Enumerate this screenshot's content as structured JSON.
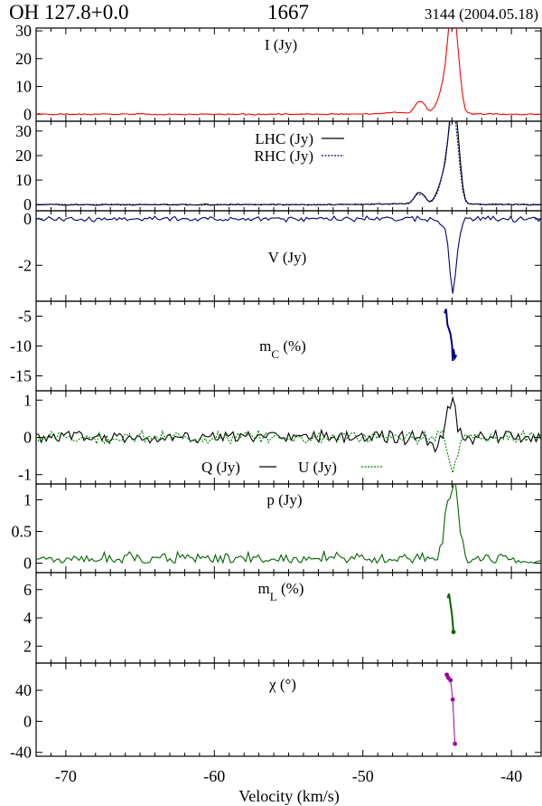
{
  "header": {
    "object": "OH 127.8+0.0",
    "frequency": "1667",
    "epoch": "3144 (2004.05.18)"
  },
  "colors": {
    "I": "#ff0000",
    "LHC": "#000000",
    "RHC": "#000080",
    "V": "#000080",
    "mC": "#000080",
    "Q": "#000000",
    "U": "#008000",
    "p": "#006400",
    "mL": "#006400",
    "chi": "#a000a0"
  },
  "chart_data": {
    "type": "line",
    "xlabel": "Velocity (km/s)",
    "xlim": [
      -72,
      -38
    ],
    "xticks": [
      -70,
      -60,
      -50,
      -40
    ],
    "panels": [
      {
        "id": "I",
        "labels": [
          "I (Jy)"
        ],
        "ylim": [
          -2.5,
          31
        ],
        "yticks": [
          0,
          10,
          20,
          30
        ],
        "ytick_labels": [
          "0",
          "10",
          "20",
          "30"
        ],
        "series": [
          {
            "color_key": "I",
            "dash": false,
            "seed": 1,
            "noise": 0.15,
            "features": [
              [
                -46,
                0,
                0.18
              ],
              [
                -47.8,
                0.3,
                0.55
              ],
              [
                -46.3,
                3.5,
                0.25
              ],
              [
                -45.9,
                2.5,
                0.2
              ],
              [
                -44.9,
                3,
                0.3
              ],
              [
                -44.4,
                12,
                0.3
              ],
              [
                -44.05,
                26,
                0.22
              ],
              [
                -43.75,
                20,
                0.22
              ],
              [
                -43.45,
                6,
                0.2
              ]
            ],
            "floor": 0.4
          }
        ]
      },
      {
        "id": "LR",
        "labels": [
          "LHC (Jy)",
          "RHC (Jy)"
        ],
        "ylim": [
          -2.5,
          34
        ],
        "yticks": [
          0,
          10,
          20,
          30
        ],
        "ytick_labels": [
          "0",
          "10",
          "20",
          "30"
        ],
        "series": [
          {
            "name": "LHC (Jy)",
            "color_key": "LHC",
            "dash": false,
            "seed": 2,
            "noise": 0.15,
            "features": [
              [
                -46.3,
                4,
                0.25
              ],
              [
                -45.9,
                2.5,
                0.2
              ],
              [
                -44.9,
                3.5,
                0.3
              ],
              [
                -44.4,
                13,
                0.3
              ],
              [
                -44.0,
                29,
                0.22
              ],
              [
                -43.7,
                21,
                0.22
              ],
              [
                -43.45,
                6,
                0.2
              ]
            ],
            "floor": 0.4
          },
          {
            "name": "RHC (Jy)",
            "color_key": "RHC",
            "dash": true,
            "seed": 3,
            "noise": 0.15,
            "features": [
              [
                -46.3,
                3.5,
                0.25
              ],
              [
                -45.9,
                2.2,
                0.2
              ],
              [
                -44.9,
                3,
                0.3
              ],
              [
                -44.4,
                12,
                0.3
              ],
              [
                -44.05,
                22,
                0.25
              ],
              [
                -43.75,
                20,
                0.22
              ],
              [
                -43.45,
                5,
                0.2
              ]
            ],
            "floor": 0.4
          }
        ]
      },
      {
        "id": "V",
        "labels": [
          "V (Jy)"
        ],
        "ylim": [
          -3.55,
          0.35
        ],
        "yticks": [
          0,
          -2
        ],
        "ytick_labels": [
          "0",
          "-2"
        ],
        "series": [
          {
            "color_key": "V",
            "dash": false,
            "seed": 4,
            "noise": 0.07,
            "features": [
              [
                -44.5,
                -0.4,
                0.3
              ],
              [
                -43.95,
                -3.1,
                0.2
              ],
              [
                -43.55,
                -0.6,
                0.2
              ]
            ],
            "floor": 0
          }
        ]
      },
      {
        "id": "mC",
        "labels": [
          "mC (%)"
        ],
        "ylim": [
          -17.5,
          -2.5
        ],
        "yticks": [
          -5,
          -10,
          -15
        ],
        "ytick_labels": [
          "-5",
          "-10",
          "-15"
        ],
        "points": {
          "color_key": "mC",
          "x": [
            -44.5,
            -44.4,
            -44.3,
            -44.2,
            -44.1,
            -44.0,
            -43.95,
            -43.9,
            -43.8,
            -43.7
          ],
          "y": [
            -4.5,
            -3.8,
            -6.5,
            -7.2,
            -8.0,
            -9.8,
            -12.5,
            -10.5,
            -12.0,
            -11.5
          ],
          "markers": false
        }
      },
      {
        "id": "QU",
        "labels": [
          "Q (Jy)",
          "U (Jy)"
        ],
        "ylim": [
          -1.25,
          1.25
        ],
        "yticks": [
          1,
          0,
          -1
        ],
        "ytick_labels": [
          "1",
          "0",
          "-1"
        ],
        "series": [
          {
            "name": "Q (Jy)",
            "color_key": "Q",
            "dash": false,
            "seed": 5,
            "noise": 0.11,
            "features": [
              [
                -44.05,
                0.95,
                0.3
              ],
              [
                -45.2,
                -0.3,
                0.25
              ]
            ],
            "floor": 0
          },
          {
            "name": "U (Jy)",
            "color_key": "U",
            "dash": true,
            "seed": 6,
            "noise": 0.1,
            "features": [
              [
                -43.95,
                -0.8,
                0.3
              ],
              [
                -44.7,
                0.2,
                0.25
              ]
            ],
            "floor": 0
          }
        ]
      },
      {
        "id": "p",
        "labels": [
          "p (Jy)"
        ],
        "ylim": [
          -0.15,
          1.25
        ],
        "yticks": [
          1,
          0.5,
          0
        ],
        "ytick_labels": [
          "1",
          "0.5",
          "0"
        ],
        "series": [
          {
            "color_key": "p",
            "dash": false,
            "seed": 7,
            "noise": 0.1,
            "abs": true,
            "features": [
              [
                -44.2,
                1.05,
                0.35
              ],
              [
                -43.7,
                0.7,
                0.25
              ]
            ],
            "floor": 0
          }
        ]
      },
      {
        "id": "mL",
        "labels": [
          "mL (%)"
        ],
        "ylim": [
          0.8,
          7.2
        ],
        "yticks": [
          6,
          4,
          2
        ],
        "ytick_labels": [
          "6",
          "4",
          "2"
        ],
        "points": {
          "color_key": "mL",
          "x": [
            -44.3,
            -44.2,
            -44.1,
            -44.0,
            -43.9
          ],
          "y": [
            5.4,
            5.7,
            5.0,
            4.2,
            3.0
          ],
          "markers": false,
          "end_marker": true
        }
      },
      {
        "id": "chi",
        "labels": [
          "χ (°)"
        ],
        "ylim": [
          -45,
          75
        ],
        "yticks": [
          40,
          0,
          -40
        ],
        "ytick_labels": [
          "40",
          "0",
          "-40"
        ],
        "points": {
          "color_key": "chi",
          "x": [
            -44.35,
            -44.25,
            -44.1,
            -43.95,
            -43.8
          ],
          "y": [
            60,
            56,
            53,
            28,
            -29
          ],
          "markers": true
        }
      }
    ]
  }
}
